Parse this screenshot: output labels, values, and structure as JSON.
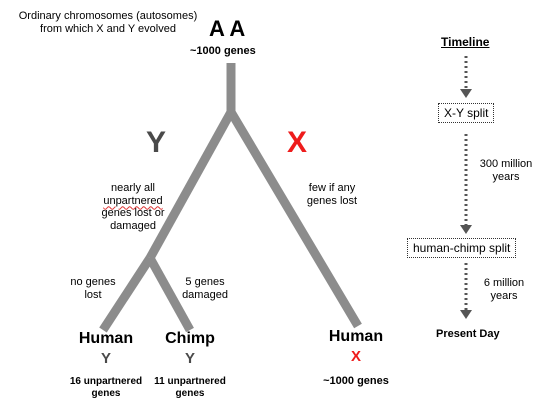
{
  "header": {
    "ancestor_line1": "Ordinary chromosomes (autosomes)",
    "ancestor_line2": "from which X and Y evolved",
    "ancestor_letters": "A A",
    "ancestor_genes": "~1000 genes"
  },
  "branches": {
    "y_letter": "Y",
    "x_letter": "X",
    "y_note": [
      "nearly all",
      "unpartnered",
      "genes lost or",
      "damaged"
    ],
    "x_note": [
      "few if any",
      "genes lost"
    ],
    "human_y_note": [
      "no genes",
      "lost"
    ],
    "chimp_y_note": [
      "5 genes",
      "damaged"
    ]
  },
  "leaves": {
    "human_y": {
      "name": "Human",
      "chrom": "Y",
      "genes_line1": "16 unpartnered",
      "genes_line2": "genes"
    },
    "chimp_y": {
      "name": "Chimp",
      "chrom": "Y",
      "genes_line1": "11 unpartnered",
      "genes_line2": "genes"
    },
    "human_x": {
      "name": "Human",
      "chrom": "X",
      "genes": "~1000 genes"
    }
  },
  "timeline": {
    "title": "Timeline",
    "event1": "X-Y split",
    "interval1": [
      "300 million",
      "years"
    ],
    "event2": "human-chimp split",
    "interval2": [
      "6 million",
      "years"
    ],
    "end": "Present Day"
  },
  "colors": {
    "branch": "#8c8c8c",
    "y_letter": "#4a4a4a",
    "x_letter": "#ee1c1c",
    "timeline_arrow": "#555555"
  }
}
